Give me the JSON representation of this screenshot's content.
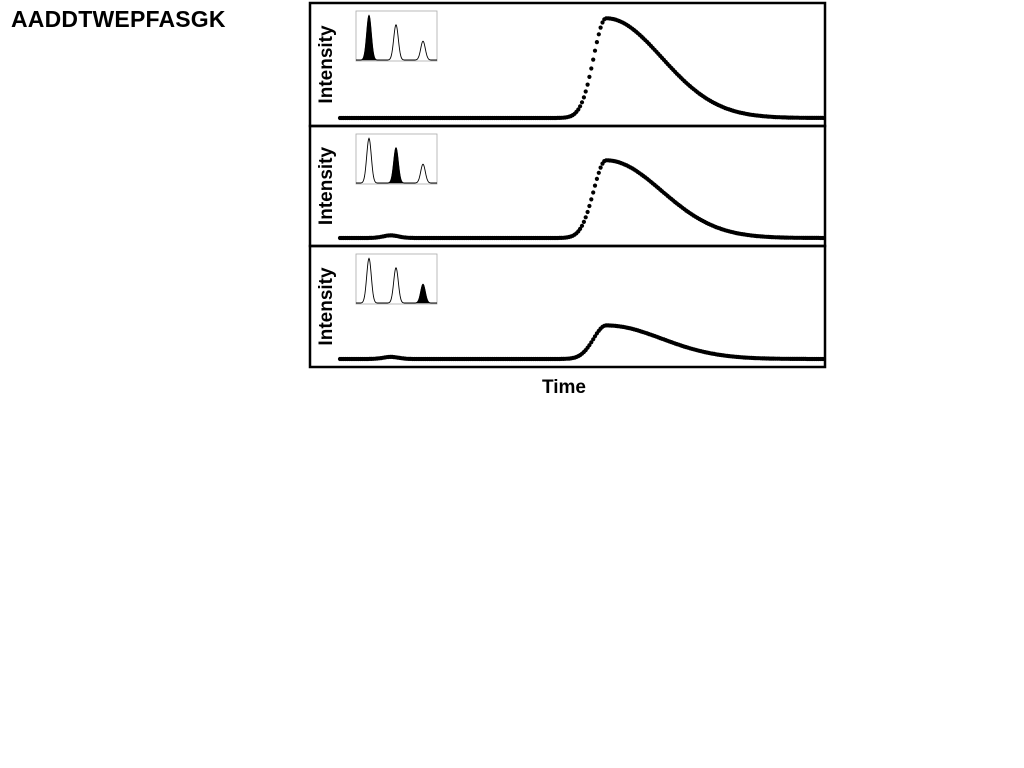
{
  "title": "AADDTWEPFASGK",
  "colors": {
    "ink": "#000000",
    "background": "#ffffff",
    "inset_frame": "#aaaaaa"
  },
  "chart_data": [
    {
      "type": "scatter",
      "panel": "top",
      "ylabel": "Intensity",
      "xlabel": "",
      "x_range": [
        0,
        100
      ],
      "y_range": [
        0,
        1
      ],
      "baseline_bumps": [],
      "peak": {
        "center": 55,
        "height": 0.95,
        "rise_width": 2.6,
        "tail_width": 8.5
      },
      "inset": {
        "type": "area",
        "peaks": [
          0.95,
          0.75,
          0.4
        ],
        "highlighted": 0
      }
    },
    {
      "type": "scatter",
      "panel": "middle",
      "ylabel": "Intensity",
      "xlabel": "",
      "x_range": [
        0,
        100
      ],
      "y_range": [
        0,
        1
      ],
      "baseline_bumps": [
        {
          "center": 10.5,
          "height": 0.025,
          "width": 1.6
        }
      ],
      "peak": {
        "center": 55,
        "height": 0.74,
        "rise_width": 2.6,
        "tail_width": 8.5
      },
      "inset": {
        "type": "area",
        "peaks": [
          0.95,
          0.75,
          0.4
        ],
        "highlighted": 1
      }
    },
    {
      "type": "scatter",
      "panel": "bottom",
      "ylabel": "Intensity",
      "xlabel": "Time",
      "x_range": [
        0,
        100
      ],
      "y_range": [
        0,
        1
      ],
      "baseline_bumps": [
        {
          "center": 10.5,
          "height": 0.02,
          "width": 1.6
        }
      ],
      "peak": {
        "center": 55,
        "height": 0.32,
        "rise_width": 2.6,
        "tail_width": 8.5
      },
      "inset": {
        "type": "area",
        "peaks": [
          0.95,
          0.75,
          0.4
        ],
        "highlighted": 2
      }
    }
  ]
}
